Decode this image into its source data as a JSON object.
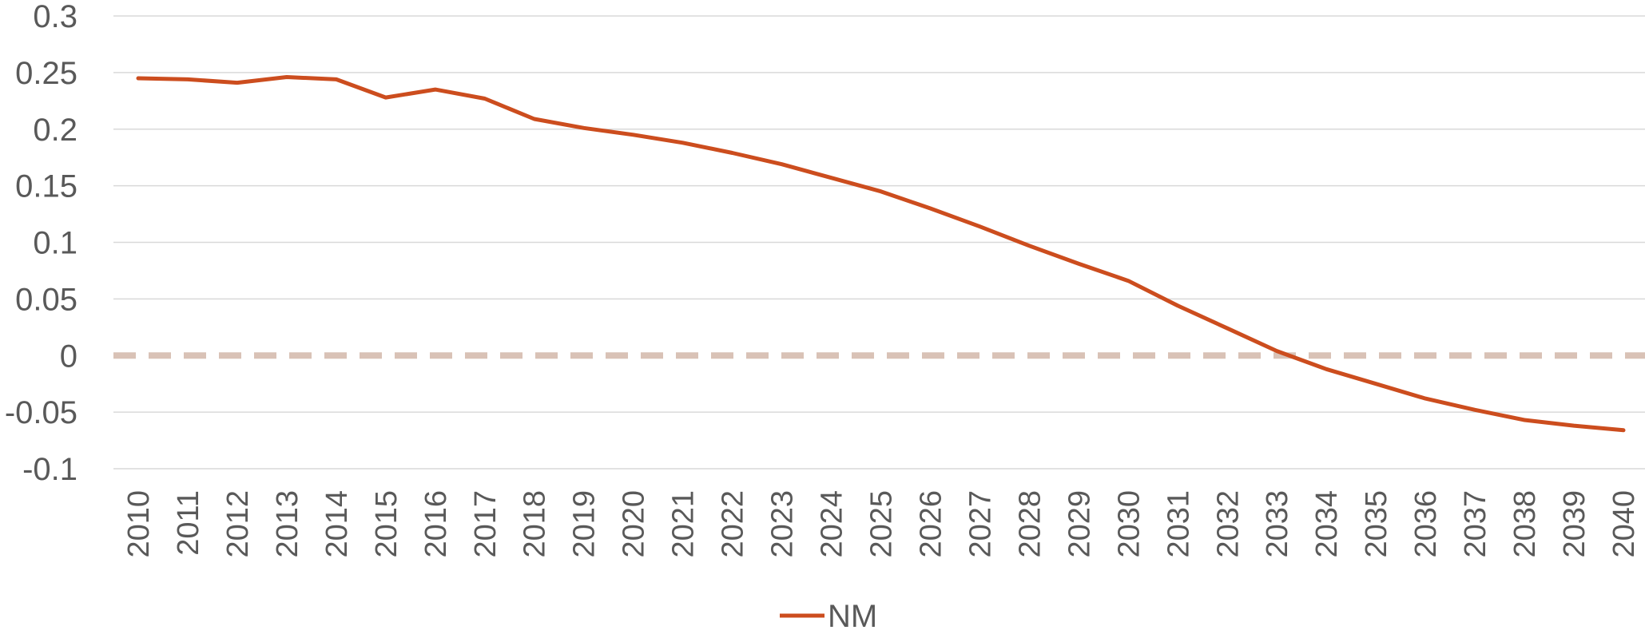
{
  "chart_data": {
    "type": "line",
    "title": "",
    "xlabel": "",
    "ylabel": "",
    "x": [
      "2010",
      "2011",
      "2012",
      "2013",
      "2014",
      "2015",
      "2016",
      "2017",
      "2018",
      "2019",
      "2020",
      "2021",
      "2022",
      "2023",
      "2024",
      "2025",
      "2026",
      "2027",
      "2028",
      "2029",
      "2030",
      "2031",
      "2032",
      "2033",
      "2034",
      "2035",
      "2036",
      "2037",
      "2038",
      "2039",
      "2040"
    ],
    "series": [
      {
        "name": "NM",
        "color": "#CC4D1E",
        "values": [
          0.245,
          0.244,
          0.241,
          0.246,
          0.244,
          0.228,
          0.235,
          0.227,
          0.209,
          0.201,
          0.195,
          0.188,
          0.179,
          0.169,
          0.157,
          0.145,
          0.13,
          0.114,
          0.097,
          0.081,
          0.066,
          0.044,
          0.024,
          0.004,
          -0.012,
          -0.025,
          -0.038,
          -0.048,
          -0.057,
          -0.062,
          -0.066
        ]
      }
    ],
    "ylim": [
      -0.1,
      0.3
    ],
    "yticks": [
      "-0.1",
      "-0.05",
      "0",
      "0.05",
      "0.1",
      "0.15",
      "0.2",
      "0.25",
      "0.3"
    ],
    "reference_line": {
      "y": 0,
      "style": "dashed",
      "color": "#D9C2B6"
    },
    "grid": true,
    "gridline_color": "#D9D9D9",
    "legend_position": "bottom-center"
  }
}
